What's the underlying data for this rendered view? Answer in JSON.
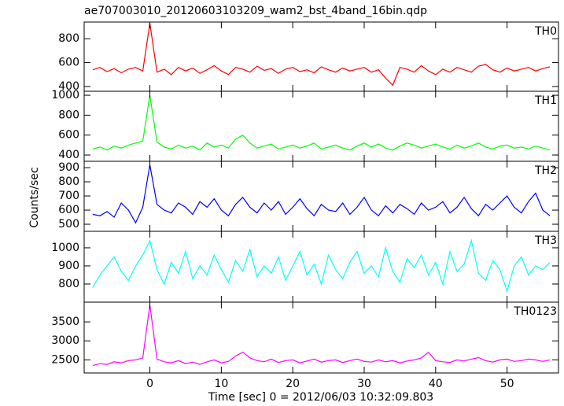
{
  "title": "ae707003010_20120603103209_wam2_bst_4band_16bin.qdp",
  "xlabel": "Time [sec] 0 = 2012/06/03 10:32:09.803",
  "ylabel": "Counts/sec",
  "chart_data": [
    {
      "type": "line",
      "name": "TH0",
      "color": "#ff0000",
      "x": [
        -8,
        -7,
        -6,
        -5,
        -4,
        -3,
        -2,
        -1,
        0,
        1,
        2,
        3,
        4,
        5,
        6,
        7,
        8,
        9,
        10,
        11,
        12,
        13,
        14,
        15,
        16,
        17,
        18,
        19,
        20,
        21,
        22,
        23,
        24,
        25,
        26,
        27,
        28,
        29,
        30,
        31,
        32,
        33,
        34,
        35,
        36,
        37,
        38,
        39,
        40,
        41,
        42,
        43,
        44,
        45,
        46,
        47,
        48,
        49,
        50,
        51,
        52,
        53,
        54,
        55,
        56
      ],
      "values": [
        540,
        560,
        525,
        550,
        515,
        545,
        560,
        530,
        930,
        520,
        545,
        500,
        560,
        530,
        555,
        510,
        540,
        575,
        530,
        500,
        560,
        545,
        520,
        570,
        535,
        550,
        510,
        545,
        560,
        525,
        540,
        515,
        565,
        540,
        520,
        555,
        530,
        545,
        560,
        520,
        540,
        470,
        410,
        560,
        545,
        520,
        575,
        530,
        500,
        545,
        520,
        560,
        540,
        520,
        570,
        585,
        540,
        520,
        555,
        530,
        545,
        560,
        530,
        550,
        565
      ],
      "xlim": [
        -9.2,
        57.2
      ],
      "xticks": [
        0,
        10,
        20,
        30,
        40,
        50
      ],
      "ylim": [
        360,
        940
      ],
      "yticks": [
        400,
        600,
        800
      ]
    },
    {
      "type": "line",
      "name": "TH1",
      "color": "#00ff00",
      "x": [
        -8,
        -7,
        -6,
        -5,
        -4,
        -3,
        -2,
        -1,
        0,
        1,
        2,
        3,
        4,
        5,
        6,
        7,
        8,
        9,
        10,
        11,
        12,
        13,
        14,
        15,
        16,
        17,
        18,
        19,
        20,
        21,
        22,
        23,
        24,
        25,
        26,
        27,
        28,
        29,
        30,
        31,
        32,
        33,
        34,
        35,
        36,
        37,
        38,
        39,
        40,
        41,
        42,
        43,
        44,
        45,
        46,
        47,
        48,
        49,
        50,
        51,
        52,
        53,
        54,
        55,
        56
      ],
      "values": [
        460,
        480,
        450,
        490,
        470,
        500,
        520,
        540,
        1000,
        530,
        480,
        460,
        500,
        470,
        490,
        450,
        520,
        480,
        500,
        470,
        560,
        600,
        520,
        470,
        490,
        510,
        460,
        480,
        500,
        470,
        490,
        520,
        460,
        480,
        500,
        470,
        450,
        490,
        520,
        480,
        510,
        470,
        450,
        490,
        520,
        500,
        470,
        490,
        510,
        480,
        460,
        500,
        470,
        490,
        520,
        480,
        460,
        490,
        500,
        470,
        480,
        460,
        490,
        470,
        450
      ],
      "xlim": [
        -9.2,
        57.2
      ],
      "xticks": [
        0,
        10,
        20,
        30,
        40,
        50
      ],
      "ylim": [
        337,
        1040
      ],
      "yticks": [
        400,
        600,
        800,
        1000
      ]
    },
    {
      "type": "line",
      "name": "TH2",
      "color": "#0000ff",
      "x": [
        -8,
        -7,
        -6,
        -5,
        -4,
        -3,
        -2,
        -1,
        0,
        1,
        2,
        3,
        4,
        5,
        6,
        7,
        8,
        9,
        10,
        11,
        12,
        13,
        14,
        15,
        16,
        17,
        18,
        19,
        20,
        21,
        22,
        23,
        24,
        25,
        26,
        27,
        28,
        29,
        30,
        31,
        32,
        33,
        34,
        35,
        36,
        37,
        38,
        39,
        40,
        41,
        42,
        43,
        44,
        45,
        46,
        47,
        48,
        49,
        50,
        51,
        52,
        53,
        54,
        55,
        56
      ],
      "values": [
        570,
        560,
        590,
        550,
        650,
        600,
        510,
        620,
        920,
        640,
        600,
        580,
        650,
        620,
        570,
        660,
        620,
        680,
        600,
        560,
        640,
        690,
        620,
        580,
        650,
        600,
        660,
        570,
        620,
        680,
        610,
        560,
        640,
        600,
        590,
        650,
        570,
        620,
        690,
        600,
        560,
        630,
        580,
        640,
        610,
        570,
        650,
        600,
        620,
        660,
        580,
        620,
        690,
        610,
        560,
        640,
        600,
        650,
        700,
        620,
        580,
        660,
        720,
        600,
        560
      ],
      "xlim": [
        -9.2,
        57.2
      ],
      "xticks": [
        0,
        10,
        20,
        30,
        40,
        50
      ],
      "ylim": [
        450,
        945
      ],
      "yticks": [
        500,
        600,
        700,
        800,
        900
      ]
    },
    {
      "type": "line",
      "name": "TH3",
      "color": "#00ffff",
      "x": [
        -8,
        -7,
        -6,
        -5,
        -4,
        -3,
        -2,
        -1,
        0,
        1,
        2,
        3,
        4,
        5,
        6,
        7,
        8,
        9,
        10,
        11,
        12,
        13,
        14,
        15,
        16,
        17,
        18,
        19,
        20,
        21,
        22,
        23,
        24,
        25,
        26,
        27,
        28,
        29,
        30,
        31,
        32,
        33,
        34,
        35,
        36,
        37,
        38,
        39,
        40,
        41,
        42,
        43,
        44,
        45,
        46,
        47,
        48,
        49,
        50,
        51,
        52,
        53,
        54,
        55,
        56
      ],
      "values": [
        780,
        850,
        900,
        950,
        870,
        820,
        900,
        960,
        1040,
        880,
        800,
        920,
        860,
        980,
        830,
        900,
        850,
        960,
        880,
        810,
        930,
        870,
        990,
        840,
        900,
        860,
        950,
        820,
        900,
        980,
        850,
        910,
        800,
        960,
        880,
        830,
        920,
        980,
        860,
        900,
        840,
        1000,
        870,
        810,
        940,
        890,
        960,
        850,
        920,
        800,
        980,
        870,
        910,
        1040,
        860,
        820,
        930,
        880,
        760,
        900,
        950,
        850,
        900,
        880,
        920
      ],
      "xlim": [
        -9.2,
        57.2
      ],
      "xticks": [
        0,
        10,
        20,
        30,
        40,
        50
      ],
      "ylim": [
        700,
        1091
      ],
      "yticks": [
        800,
        900,
        1000
      ]
    },
    {
      "type": "line",
      "name": "TH0123",
      "color": "#ff00ff",
      "x": [
        -8,
        -7,
        -6,
        -5,
        -4,
        -3,
        -2,
        -1,
        0,
        1,
        2,
        3,
        4,
        5,
        6,
        7,
        8,
        9,
        10,
        11,
        12,
        13,
        14,
        15,
        16,
        17,
        18,
        19,
        20,
        21,
        22,
        23,
        24,
        25,
        26,
        27,
        28,
        29,
        30,
        31,
        32,
        33,
        34,
        35,
        36,
        37,
        38,
        39,
        40,
        41,
        42,
        43,
        44,
        45,
        46,
        47,
        48,
        49,
        50,
        51,
        52,
        53,
        54,
        55,
        56
      ],
      "values": [
        2350,
        2400,
        2380,
        2450,
        2420,
        2480,
        2500,
        2550,
        3950,
        2520,
        2450,
        2420,
        2480,
        2400,
        2440,
        2380,
        2450,
        2500,
        2420,
        2460,
        2600,
        2700,
        2550,
        2480,
        2450,
        2520,
        2430,
        2480,
        2500,
        2420,
        2470,
        2520,
        2440,
        2480,
        2500,
        2430,
        2480,
        2520,
        2460,
        2440,
        2500,
        2450,
        2480,
        2420,
        2470,
        2500,
        2550,
        2700,
        2480,
        2450,
        2430,
        2500,
        2470,
        2520,
        2560,
        2480,
        2440,
        2500,
        2520,
        2460,
        2480,
        2520,
        2500,
        2460,
        2500
      ],
      "xlim": [
        -9.2,
        57.2
      ],
      "xticks": [
        0,
        10,
        20,
        30,
        40,
        50
      ],
      "ylim": [
        2155,
        4020
      ],
      "yticks": [
        2500,
        3000,
        3500
      ]
    }
  ]
}
